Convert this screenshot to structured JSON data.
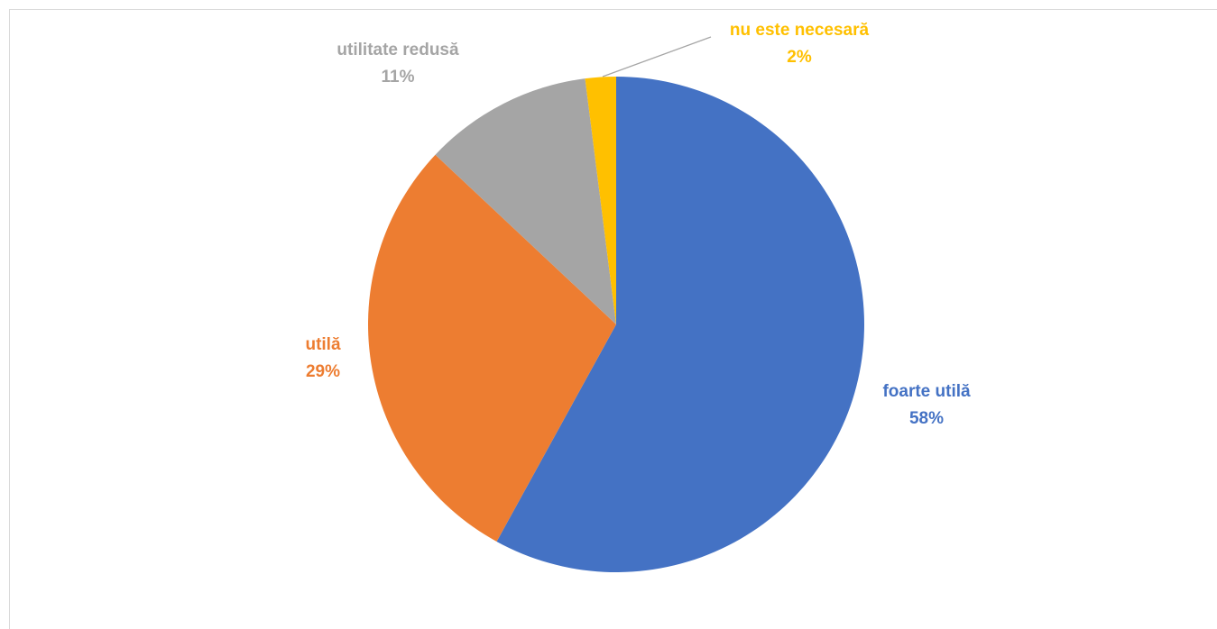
{
  "chart_data": {
    "type": "pie",
    "categories": [
      "foarte utilă",
      "utilă",
      "utilitate redusă",
      "nu este necesară"
    ],
    "values": [
      58,
      29,
      11,
      2
    ],
    "value_labels": [
      "58%",
      "29%",
      "11%",
      "2%"
    ],
    "colors": [
      "#4472c4",
      "#ed7d31",
      "#a5a5a5",
      "#ffc000"
    ]
  }
}
